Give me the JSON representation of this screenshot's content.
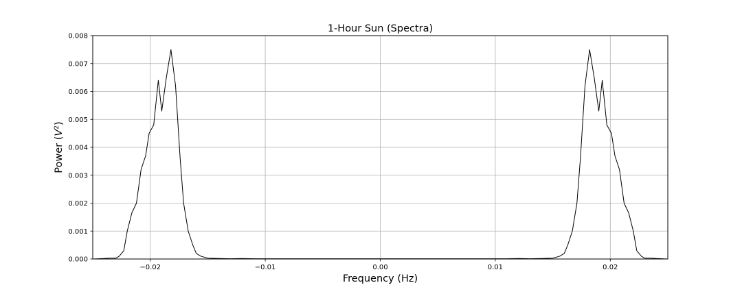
{
  "chart_data": {
    "type": "line",
    "title": "1-Hour Sun (Spectra)",
    "xlabel": "Frequency (Hz)",
    "ylabel": {
      "base": "Power (",
      "italic": "V",
      "sup": "2",
      "close": ")"
    },
    "xlim": [
      -0.025,
      0.025
    ],
    "ylim": [
      0,
      0.008
    ],
    "x_ticks": [
      {
        "value": -0.02,
        "label": "−0.02"
      },
      {
        "value": -0.01,
        "label": "−0.01"
      },
      {
        "value": 0.0,
        "label": "0.00"
      },
      {
        "value": 0.01,
        "label": "0.01"
      },
      {
        "value": 0.02,
        "label": "0.02"
      }
    ],
    "y_ticks": [
      {
        "value": 0.0,
        "label": "0.000"
      },
      {
        "value": 0.001,
        "label": "0.001"
      },
      {
        "value": 0.002,
        "label": "0.002"
      },
      {
        "value": 0.003,
        "label": "0.003"
      },
      {
        "value": 0.004,
        "label": "0.004"
      },
      {
        "value": 0.005,
        "label": "0.005"
      },
      {
        "value": 0.006,
        "label": "0.006"
      },
      {
        "value": 0.007,
        "label": "0.007"
      },
      {
        "value": 0.008,
        "label": "0.008"
      }
    ],
    "grid": true,
    "line_color": "#000000",
    "grid_color": "#b0b0b0",
    "series": [
      {
        "x": [
          -0.025,
          -0.024,
          -0.0235,
          -0.023,
          -0.0227,
          -0.0223,
          -0.022,
          -0.0216,
          -0.0212,
          -0.0208,
          -0.0204,
          -0.0201,
          -0.0197,
          -0.0193,
          -0.019,
          -0.0186,
          -0.0182,
          -0.0178,
          -0.0174,
          -0.0171,
          -0.0167,
          -0.0163,
          -0.016,
          -0.0156,
          -0.015,
          -0.014,
          -0.013,
          -0.012,
          -0.011,
          -0.01,
          -0.009,
          -0.008,
          -0.007,
          -0.006,
          -0.005,
          -0.004,
          -0.003,
          -0.002,
          -0.001,
          0.0,
          0.001,
          0.002,
          0.003,
          0.004,
          0.005,
          0.006,
          0.007,
          0.008,
          0.009,
          0.01,
          0.011,
          0.012,
          0.013,
          0.014,
          0.015,
          0.0156,
          0.016,
          0.0163,
          0.0167,
          0.0171,
          0.0174,
          0.0178,
          0.0182,
          0.0186,
          0.019,
          0.0193,
          0.0197,
          0.0201,
          0.0204,
          0.0208,
          0.0212,
          0.0216,
          0.022,
          0.0223,
          0.0227,
          0.023,
          0.0235,
          0.024,
          0.025
        ],
        "y": [
          0.0,
          2e-05,
          3e-05,
          3e-05,
          0.0001,
          0.0003,
          0.001,
          0.00165,
          0.002,
          0.0032,
          0.0037,
          0.0045,
          0.0048,
          0.0064,
          0.0053,
          0.0065,
          0.0075,
          0.0062,
          0.0036,
          0.002,
          0.001,
          0.0005,
          0.0002,
          0.0001,
          3e-05,
          2e-05,
          1e-05,
          2e-05,
          1e-05,
          1e-05,
          1e-05,
          1e-05,
          1e-05,
          1e-05,
          1e-05,
          1e-05,
          1e-05,
          1e-05,
          1e-05,
          1e-05,
          1e-05,
          1e-05,
          1e-05,
          1e-05,
          1e-05,
          1e-05,
          1e-05,
          1e-05,
          1e-05,
          1e-05,
          1e-05,
          2e-05,
          1e-05,
          2e-05,
          3e-05,
          0.0001,
          0.0002,
          0.0005,
          0.001,
          0.002,
          0.0036,
          0.0062,
          0.0075,
          0.0065,
          0.0053,
          0.0064,
          0.0048,
          0.0045,
          0.0037,
          0.0032,
          0.002,
          0.00165,
          0.001,
          0.0003,
          0.0001,
          3e-05,
          3e-05,
          2e-05,
          0.0
        ]
      }
    ]
  }
}
